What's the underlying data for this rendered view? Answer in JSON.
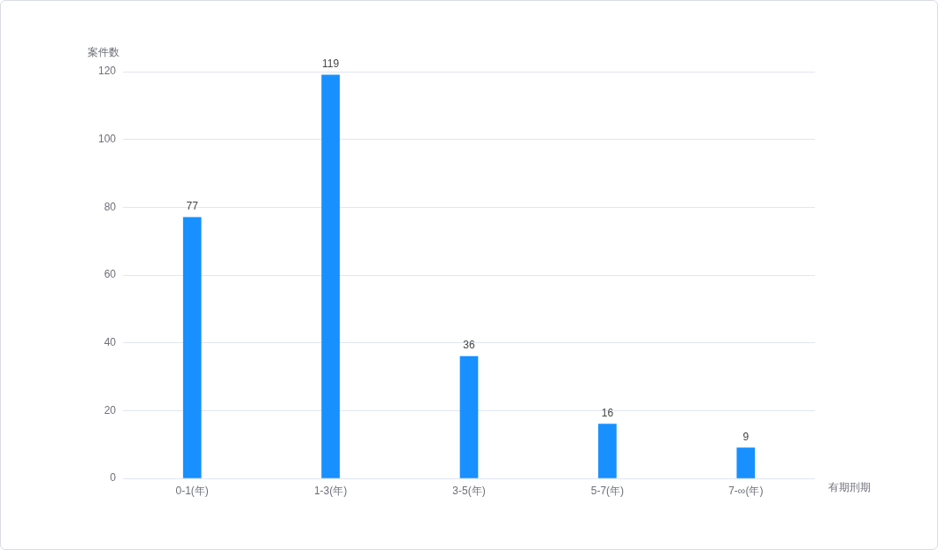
{
  "chart_data": {
    "type": "bar",
    "xlabel": "有期刑期",
    "ylabel": "案件数",
    "categories": [
      "0-1(年)",
      "1-3(年)",
      "3-5(年)",
      "5-7(年)",
      "7-∞(年)"
    ],
    "values": [
      77,
      119,
      36,
      16,
      9
    ],
    "color": "#1890ff",
    "ylim": [
      0,
      120
    ],
    "yticks": [
      0,
      20,
      40,
      60,
      80,
      100,
      120
    ],
    "grid": "y",
    "data_labels": true
  }
}
